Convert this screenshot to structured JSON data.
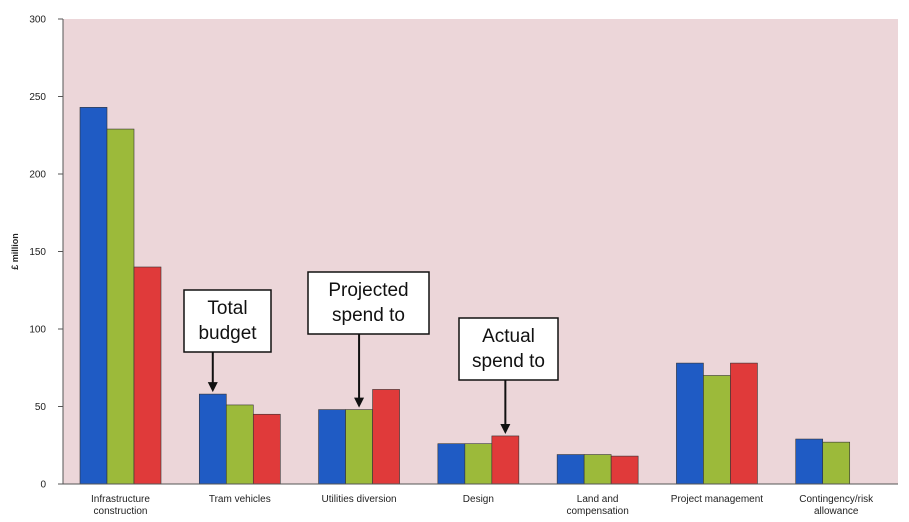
{
  "chart_data": {
    "type": "bar",
    "ylabel": "£ million",
    "xlabel": "",
    "ylim": [
      0,
      300
    ],
    "yticks": [
      0,
      50,
      100,
      150,
      200,
      250,
      300
    ],
    "grid": false,
    "categories": [
      [
        "Infrastructure",
        "construction"
      ],
      [
        "Tram vehicles"
      ],
      [
        "Utilities diversion"
      ],
      [
        "Design"
      ],
      [
        "Land and",
        "compensation"
      ],
      [
        "Project management"
      ],
      [
        "Contingency/risk",
        "allowance"
      ]
    ],
    "series": [
      {
        "values": [
          243,
          58,
          48,
          26,
          19,
          78,
          29
        ]
      },
      {
        "values": [
          229,
          51,
          48,
          26,
          19,
          70,
          27
        ]
      },
      {
        "values": [
          140,
          45,
          61,
          31,
          18,
          78,
          null
        ]
      }
    ],
    "annotations": [
      {
        "lines": [
          "Total",
          "budget"
        ],
        "category": 1,
        "series": 0
      },
      {
        "lines": [
          "Projected",
          "spend to"
        ],
        "category": 2,
        "series": 1
      },
      {
        "lines": [
          "Actual",
          "spend to"
        ],
        "category": 3,
        "series": 2
      }
    ]
  },
  "colors": {
    "plot_background": "#ecd6d9",
    "series": [
      "#1f5bc4",
      "#9cba3a",
      "#e03a3a"
    ],
    "bar_stroke": "#333333",
    "axis": "#555555"
  }
}
